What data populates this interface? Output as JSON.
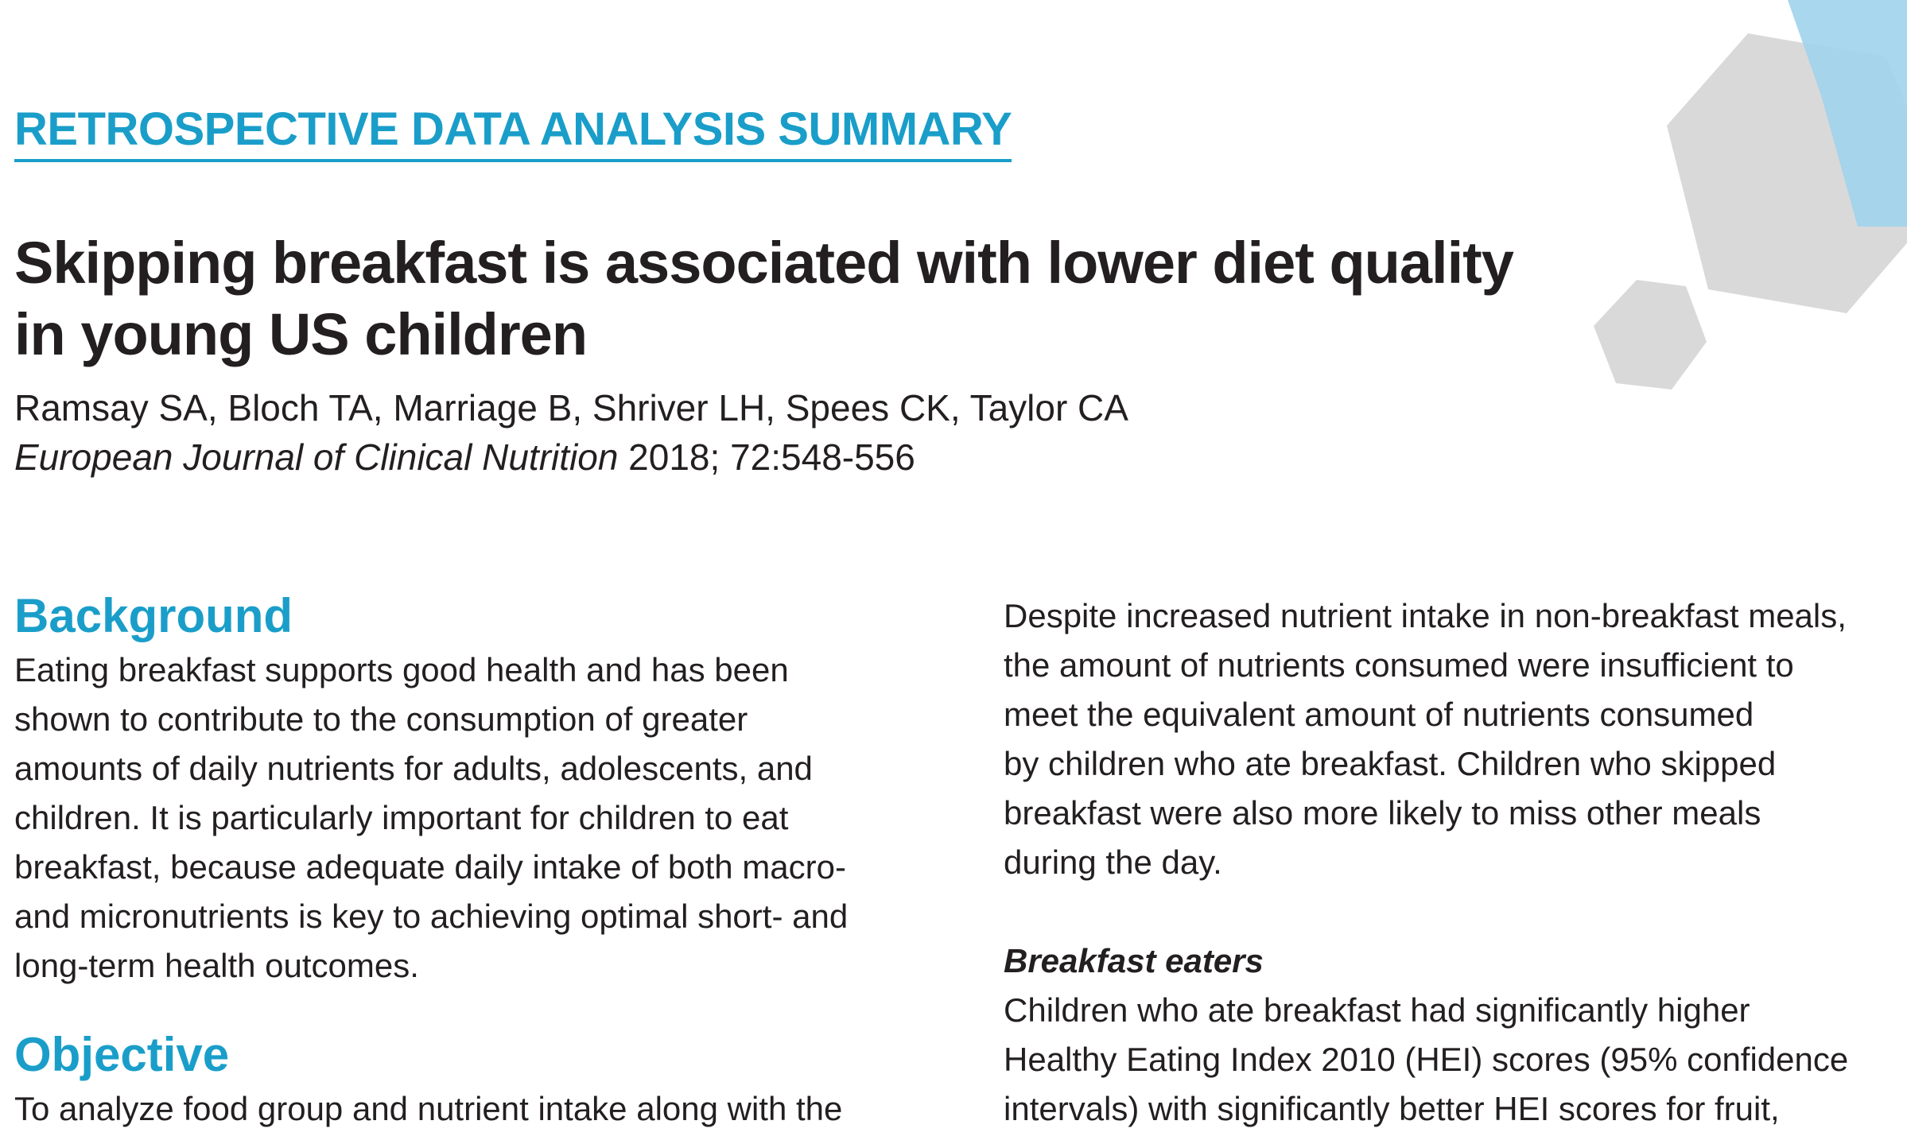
{
  "header": {
    "doc_type": "RETROSPECTIVE DATA ANALYSIS SUMMARY",
    "title_lines": [
      "Skipping breakfast is associated with lower diet quality",
      "in young US children"
    ],
    "authors": "Ramsay SA, Bloch TA, Marriage B, Shriver LH, Spees CK, Taylor CA",
    "journal": "European Journal of Clinical Nutrition",
    "citation_detail": " 2018; 72:548-556"
  },
  "colors": {
    "accent": "#1a9ec9",
    "text": "#231f20",
    "hexagon_gray": "#d9d9da",
    "hexagon_blue": "#9fd3ec"
  },
  "left_column": {
    "background": {
      "heading": "Background",
      "lines": [
        "Eating breakfast supports good health and has been",
        "shown to contribute to the consumption of greater",
        "amounts of daily nutrients for adults, adolescents, and",
        "children. It is particularly important for children to eat",
        "breakfast, because adequate daily intake of both macro-",
        "and micronutrients is key to achieving optimal short- and",
        "long-term health outcomes."
      ]
    },
    "objective": {
      "heading": "Objective",
      "lines": [
        "To analyze food group and nutrient intake along with the"
      ]
    }
  },
  "right_column": {
    "intro_lines": [
      "Despite increased nutrient intake in non-breakfast meals,",
      "the amount of nutrients consumed were insufficient to",
      "meet the equivalent amount of nutrients consumed",
      "by children who ate breakfast. Children who skipped",
      "breakfast were also more likely to miss other meals",
      "during the day."
    ],
    "breakfast_eaters": {
      "heading": "Breakfast eaters",
      "lines": [
        "Children who ate breakfast had significantly higher",
        "Healthy Eating Index 2010 (HEI) scores (95% confidence",
        "intervals) with significantly better HEI scores for fruit,"
      ]
    }
  }
}
